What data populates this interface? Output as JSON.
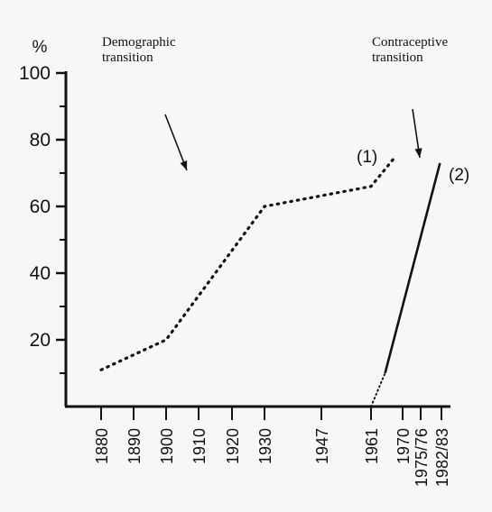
{
  "chart_data": {
    "type": "line",
    "unit": "%",
    "ylim": [
      0,
      100
    ],
    "yticks": [
      "20",
      "40",
      "60",
      "80",
      "100"
    ],
    "x_ticks": [
      "1880",
      "1890",
      "1900",
      "1910",
      "1920",
      "1930",
      "1947",
      "1961",
      "1970",
      "1975/76",
      "1982/83"
    ],
    "annotations": [
      "Demographic\ntransition",
      "Contraceptive\ntransition"
    ],
    "series": [
      {
        "name": "(1)",
        "style": "dotted",
        "points": [
          {
            "x": 1880,
            "y": 11
          },
          {
            "x": 1900,
            "y": 20
          },
          {
            "x": 1930,
            "y": 60
          },
          {
            "x": 1961,
            "y": 66
          },
          {
            "x": 1968,
            "y": 75
          }
        ]
      },
      {
        "name": "(2)",
        "style": "dotted-then-solid",
        "points": [
          {
            "x": 1961,
            "y": 0
          },
          {
            "x": 1965,
            "y": 10
          },
          {
            "x": 1982.5,
            "y": 73
          }
        ]
      }
    ],
    "colors": {
      "ink": "#111111",
      "background": "#f7f7f5"
    }
  }
}
